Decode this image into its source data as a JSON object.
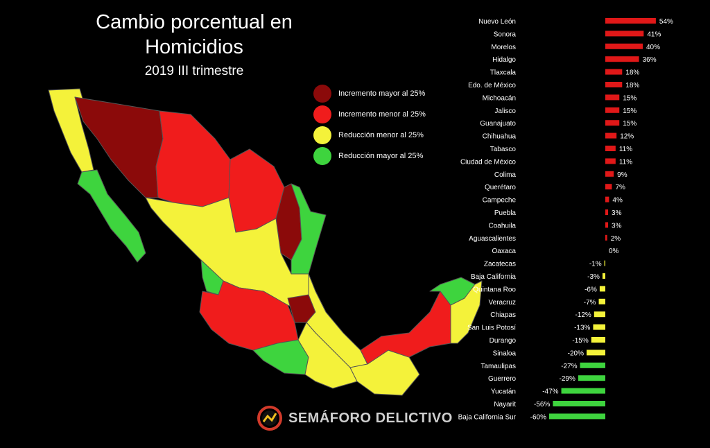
{
  "title_line1": "Cambio porcentual en",
  "title_line2": "Homicidios",
  "subtitle": "2019 III trimestre",
  "legend": [
    {
      "label": "Incremento mayor al 25%",
      "color": "#8b0a0a"
    },
    {
      "label": "Incremento menor al 25%",
      "color": "#f01c1c"
    },
    {
      "label": "Reducción menor al 25%",
      "color": "#f4f23a"
    },
    {
      "label": "Reducción mayor al 25%",
      "color": "#3ed43e"
    }
  ],
  "logo_text": "SEMÁFORO DELICTIVO",
  "colors": {
    "positive_bar": "#e01818",
    "negative_mid": "#f4f23a",
    "negative_big": "#3ed43e"
  },
  "chart_data": {
    "type": "bar",
    "orientation": "horizontal",
    "categories": [
      "Nuevo León",
      "Sonora",
      "Morelos",
      "Hidalgo",
      "Tlaxcala",
      "Edo. de México",
      "Michoacán",
      "Jalisco",
      "Guanajuato",
      "Chihuahua",
      "Tabasco",
      "Ciudad de México",
      "Colima",
      "Querétaro",
      "Campeche",
      "Puebla",
      "Coahuila",
      "Aguascalientes",
      "Oaxaca",
      "Zacatecas",
      "Baja California",
      "Quintana Roo",
      "Veracruz",
      "Chiapas",
      "San Luis Potosí",
      "Durango",
      "Sinaloa",
      "Tamaulipas",
      "Guerrero",
      "Yucatán",
      "Nayarit",
      "Baja California Sur"
    ],
    "values": [
      54,
      41,
      40,
      36,
      18,
      18,
      15,
      15,
      15,
      12,
      11,
      11,
      9,
      7,
      4,
      3,
      3,
      2,
      0,
      -1,
      -3,
      -6,
      -7,
      -12,
      -13,
      -15,
      -20,
      -27,
      -29,
      -47,
      -56,
      -60
    ],
    "value_labels": [
      "54%",
      "41%",
      "40%",
      "36%",
      "18%",
      "18%",
      "15%",
      "15%",
      "15%",
      "12%",
      "11%",
      "11%",
      "9%",
      "7%",
      "4%",
      "3%",
      "3%",
      "2%",
      "0%",
      "-1%",
      "-3%",
      "-6%",
      "-7%",
      "-12%",
      "-13%",
      "-15%",
      "-20%",
      "-27%",
      "-29%",
      "-47%",
      "-56%",
      "-60%"
    ],
    "title": "",
    "xlabel": "",
    "ylabel": ""
  }
}
